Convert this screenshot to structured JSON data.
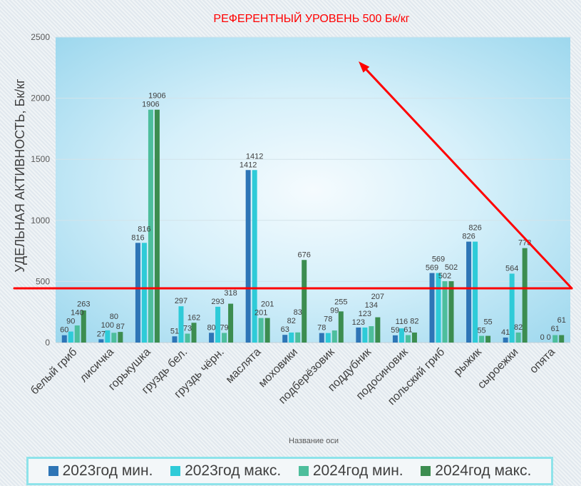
{
  "chart_data": {
    "type": "bar",
    "title": "РЕФЕРЕНТНЫЙ УРОВЕНЬ 500 Бк/кг",
    "xlabel": "Название оси",
    "ylabel": "УДЕЛЬНАЯ АКТИВНОСТЬ, Бк/кг",
    "ylim": [
      0,
      2500
    ],
    "yticks": [
      0,
      500,
      1000,
      1500,
      2000,
      2500
    ],
    "grid": true,
    "legend_position": "bottom",
    "annotation_color": "#FF0000",
    "categories": [
      "белый гриб",
      "лисичка",
      "горькушка",
      "груздь бел.",
      "груздь чёрн.",
      "маслята",
      "моховики",
      "подберёзовик",
      "поддубник",
      "подосиновик",
      "польский гриб",
      "рыжик",
      "сыроежки",
      "опята"
    ],
    "series": [
      {
        "name": "2023год мин.",
        "color": "#2E75B6",
        "values": [
          60,
          27,
          816,
          51,
          80,
          1412,
          63,
          78,
          123,
          59,
          569,
          826,
          41,
          0
        ]
      },
      {
        "name": "2023год макс.",
        "color": "#2ECBD8",
        "values": [
          90,
          100,
          816,
          297,
          293,
          1412,
          82,
          78,
          123,
          116,
          569,
          826,
          564,
          0
        ]
      },
      {
        "name": "2024год мин.",
        "color": "#4DBE9C",
        "values": [
          140,
          80,
          1906,
          73,
          79,
          201,
          83,
          99,
          134,
          61,
          502,
          55,
          82,
          61
        ]
      },
      {
        "name": "2024год макс.",
        "color": "#3C8D50",
        "values": [
          263,
          87,
          1906,
          162,
          318,
          201,
          676,
          255,
          207,
          82,
          502,
          55,
          773,
          61
        ]
      }
    ]
  }
}
